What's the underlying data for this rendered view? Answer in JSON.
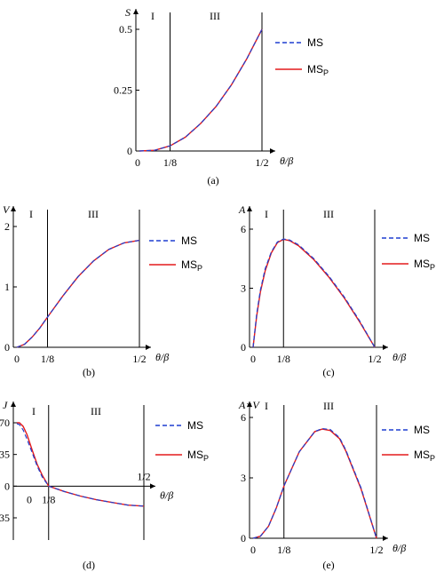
{
  "legend": {
    "ms": "MS",
    "msp_base": "MS",
    "msp_sub": "P"
  },
  "colors": {
    "ms": "#1f3fd0",
    "msp": "#e31a1c"
  },
  "regions": {
    "r1": "I",
    "r3": "III"
  },
  "xlabel": "θ/β",
  "chart_data": [
    {
      "id": "a",
      "type": "line",
      "ylabel": "S",
      "caption": "(a)",
      "xlim": [
        0,
        0.5
      ],
      "ylim": [
        0,
        0.5
      ],
      "yticks": [
        "0.25",
        "0.5"
      ],
      "ytick_values": [
        0.25,
        0.5
      ],
      "xticks": [
        "0",
        "1/8",
        "1/2"
      ],
      "xtick_values": [
        0,
        0.125,
        0.5
      ],
      "series": [
        {
          "name": "MS",
          "x": [
            0,
            0.0625,
            0.125,
            0.1875,
            0.25,
            0.3125,
            0.375,
            0.4375,
            0.5
          ],
          "y": [
            0,
            0.003,
            0.021,
            0.057,
            0.113,
            0.183,
            0.271,
            0.378,
            0.5
          ]
        },
        {
          "name": "MSP",
          "x": [
            0,
            0.0625,
            0.125,
            0.1875,
            0.25,
            0.3125,
            0.375,
            0.4375,
            0.5
          ],
          "y": [
            0,
            0.003,
            0.021,
            0.057,
            0.113,
            0.183,
            0.271,
            0.378,
            0.5
          ]
        }
      ]
    },
    {
      "id": "b",
      "type": "line",
      "ylabel": "V",
      "caption": "(b)",
      "xlim": [
        0,
        0.5
      ],
      "ylim": [
        0,
        2
      ],
      "yticks": [
        "0",
        "1",
        "2"
      ],
      "ytick_values": [
        0,
        1,
        2
      ],
      "xticks": [
        "0",
        "1/8",
        "1/2"
      ],
      "xtick_values": [
        0,
        0.125,
        0.5
      ],
      "series": [
        {
          "name": "MS",
          "x": [
            0,
            0.03125,
            0.0625,
            0.09375,
            0.125,
            0.1875,
            0.25,
            0.3125,
            0.375,
            0.4375,
            0.5
          ],
          "y": [
            0,
            0.05,
            0.17,
            0.32,
            0.5,
            0.85,
            1.17,
            1.43,
            1.62,
            1.73,
            1.77
          ]
        },
        {
          "name": "MSP",
          "x": [
            0,
            0.03125,
            0.0625,
            0.09375,
            0.125,
            0.1875,
            0.25,
            0.3125,
            0.375,
            0.4375,
            0.5
          ],
          "y": [
            0,
            0.05,
            0.17,
            0.32,
            0.5,
            0.85,
            1.17,
            1.43,
            1.62,
            1.73,
            1.77
          ]
        }
      ]
    },
    {
      "id": "c",
      "type": "line",
      "ylabel": "A",
      "caption": "(c)",
      "xlim": [
        0,
        0.5
      ],
      "ylim": [
        0,
        6
      ],
      "yticks": [
        "0",
        "3",
        "6"
      ],
      "ytick_values": [
        0,
        3,
        6
      ],
      "xticks": [
        "0",
        "1/8",
        "1/2"
      ],
      "xtick_values": [
        0,
        0.125,
        0.5
      ],
      "series": [
        {
          "name": "MS",
          "x": [
            0,
            0.015,
            0.03,
            0.05,
            0.075,
            0.1,
            0.125,
            0.15,
            0.1875,
            0.25,
            0.3125,
            0.375,
            0.4375,
            0.5
          ],
          "y": [
            0,
            1.7,
            2.9,
            4.0,
            4.85,
            5.35,
            5.5,
            5.45,
            5.2,
            4.5,
            3.6,
            2.55,
            1.35,
            0
          ]
        },
        {
          "name": "MSP",
          "x": [
            0,
            0.015,
            0.03,
            0.05,
            0.075,
            0.1,
            0.125,
            0.15,
            0.1875,
            0.25,
            0.3125,
            0.375,
            0.4375,
            0.5
          ],
          "y": [
            0,
            1.6,
            2.8,
            3.9,
            4.8,
            5.32,
            5.48,
            5.42,
            5.15,
            4.45,
            3.55,
            2.5,
            1.3,
            0
          ]
        }
      ]
    },
    {
      "id": "d",
      "type": "line",
      "ylabel": "J",
      "caption": "(d)",
      "xlim": [
        0,
        0.5
      ],
      "ylim": [
        -35,
        70
      ],
      "yticks": [
        "70",
        "35",
        "0",
        "-35"
      ],
      "ytick_values": [
        70,
        35,
        0,
        -35
      ],
      "xticks": [
        "0",
        "1/8",
        "1/2"
      ],
      "xtick_values": [
        0,
        0.125,
        0.5
      ],
      "series": [
        {
          "name": "MS",
          "x": [
            0,
            0.01,
            0.025,
            0.04,
            0.06,
            0.08,
            0.1,
            0.125,
            0.1875,
            0.25,
            0.3125,
            0.375,
            0.4375,
            0.5
          ],
          "y": [
            69,
            68,
            62,
            52,
            37,
            22,
            10,
            0,
            -6,
            -11,
            -15,
            -18,
            -21,
            -22
          ]
        },
        {
          "name": "MSP",
          "x": [
            0,
            0.01,
            0.025,
            0.04,
            0.06,
            0.08,
            0.1,
            0.125,
            0.1875,
            0.25,
            0.3125,
            0.375,
            0.4375,
            0.5
          ],
          "y": [
            70,
            70,
            66,
            57,
            40,
            24,
            12,
            0,
            -6,
            -11,
            -15,
            -18,
            -21,
            -22
          ]
        }
      ]
    },
    {
      "id": "e",
      "type": "line",
      "ylabel": "A×V",
      "caption": "(e)",
      "xlim": [
        0,
        0.5
      ],
      "ylim": [
        0,
        6
      ],
      "yticks": [
        "0",
        "3",
        "6"
      ],
      "ytick_values": [
        0,
        3,
        6
      ],
      "xticks": [
        "0",
        "1/8",
        "1/2"
      ],
      "xtick_values": [
        0,
        0.125,
        0.5
      ],
      "series": [
        {
          "name": "MS",
          "x": [
            0,
            0.03,
            0.0625,
            0.09375,
            0.125,
            0.1875,
            0.25,
            0.28,
            0.3125,
            0.35,
            0.375,
            0.4375,
            0.5
          ],
          "y": [
            0,
            0.1,
            0.6,
            1.5,
            2.6,
            4.3,
            5.3,
            5.45,
            5.4,
            5.0,
            4.4,
            2.5,
            0
          ]
        },
        {
          "name": "MSP",
          "x": [
            0,
            0.03,
            0.0625,
            0.09375,
            0.125,
            0.1875,
            0.25,
            0.28,
            0.3125,
            0.35,
            0.375,
            0.4375,
            0.5
          ],
          "y": [
            0,
            0.1,
            0.6,
            1.5,
            2.6,
            4.3,
            5.3,
            5.42,
            5.35,
            4.95,
            4.35,
            2.45,
            0
          ]
        }
      ]
    }
  ]
}
